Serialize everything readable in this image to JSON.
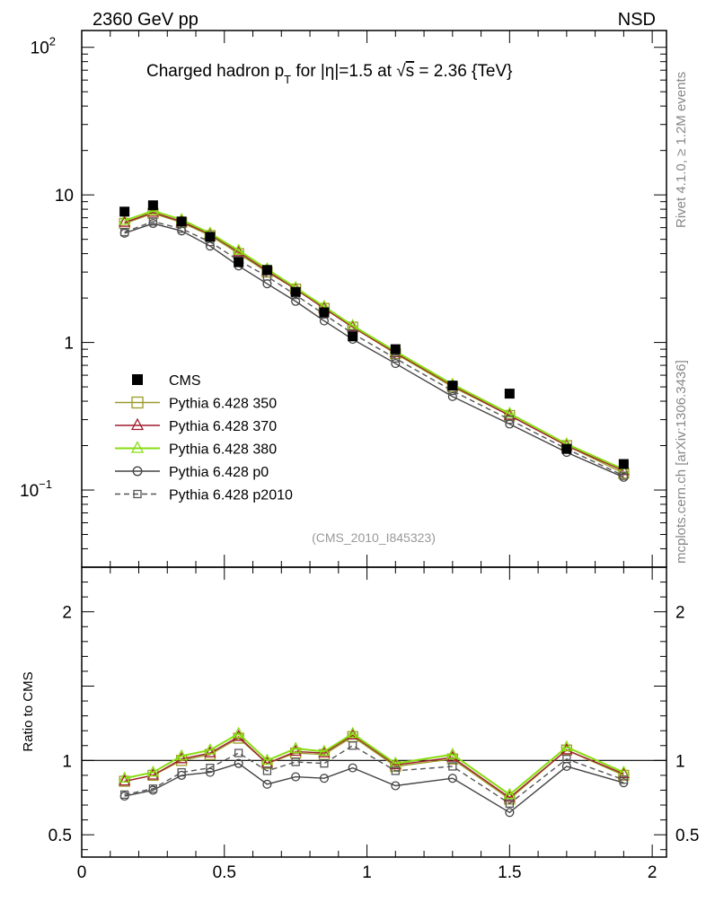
{
  "header": {
    "left_label": "2360 GeV pp",
    "right_label": "NSD"
  },
  "side_text": {
    "rivet": "Rivet 4.1.0, ≥ 1.2M events",
    "source": "mcplots.cern.ch [arXiv:1306.3436]"
  },
  "chart_data": {
    "type": "line",
    "title": {
      "pre": "Charged hadron p",
      "sub": "T",
      "mid": " for |η|=1.5 at √",
      "overline": "s",
      "post": " = 2.36 {TeV}"
    },
    "analysis_label": "(CMS_2010_I845323)",
    "x": [
      0.15,
      0.25,
      0.35,
      0.45,
      0.55,
      0.65,
      0.75,
      0.85,
      0.95,
      1.1,
      1.3,
      1.5,
      1.7,
      1.9
    ],
    "main_panel": {
      "y_scale": "log",
      "ylim": [
        0.03,
        130
      ],
      "ticks": [
        {
          "value": 100,
          "base": "10",
          "exp": "2"
        },
        {
          "value": 10,
          "base": "10",
          "exp": ""
        },
        {
          "value": 1,
          "base": "1",
          "exp": ""
        },
        {
          "value": 0.1,
          "base": "10",
          "exp": "−1"
        }
      ]
    },
    "ratio_panel": {
      "ylabel": "Ratio to CMS",
      "ylim": [
        0.35,
        2.3
      ],
      "ticks": [
        {
          "value": 2,
          "label": "2"
        },
        {
          "value": 1,
          "label": "1"
        },
        {
          "value": 0.5,
          "label": "0.5"
        }
      ]
    },
    "xlim": [
      0,
      2.05
    ],
    "x_ticks": [
      {
        "value": 0,
        "label": "0"
      },
      {
        "value": 0.5,
        "label": "0.5"
      },
      {
        "value": 1,
        "label": "1"
      },
      {
        "value": 1.5,
        "label": "1.5"
      },
      {
        "value": 2,
        "label": "2"
      }
    ],
    "data": {
      "name": "CMS",
      "color": "#000000",
      "values": [
        7.7,
        8.5,
        6.6,
        5.2,
        3.5,
        3.1,
        2.2,
        1.6,
        1.1,
        0.9,
        0.51,
        0.45,
        0.19,
        0.15
      ]
    },
    "series": [
      {
        "name": "Pythia 6.428 350",
        "color": "#9a9a2a",
        "marker": "square",
        "dash": false,
        "values": [
          6.4,
          7.5,
          6.5,
          5.3,
          4.0,
          3.0,
          2.3,
          1.7,
          1.27,
          0.84,
          0.5,
          0.32,
          0.2,
          0.13
        ],
        "ratio": [
          0.86,
          0.9,
          1.0,
          1.04,
          1.15,
          0.98,
          1.05,
          1.04,
          1.16,
          0.96,
          1.01,
          0.74,
          1.07,
          0.9
        ]
      },
      {
        "name": "Pythia 6.428 370",
        "color": "#a01c2c",
        "marker": "triangle",
        "dash": false,
        "values": [
          6.5,
          7.6,
          6.6,
          5.4,
          4.1,
          3.05,
          2.3,
          1.7,
          1.27,
          0.85,
          0.51,
          0.32,
          0.2,
          0.135
        ],
        "ratio": [
          0.86,
          0.9,
          1.01,
          1.05,
          1.16,
          0.98,
          1.06,
          1.05,
          1.17,
          0.97,
          1.02,
          0.75,
          1.07,
          0.91
        ]
      },
      {
        "name": "Pythia 6.428 380",
        "color": "#88dd11",
        "marker": "triangle",
        "dash": false,
        "values": [
          6.7,
          7.8,
          6.8,
          5.5,
          4.2,
          3.15,
          2.35,
          1.75,
          1.3,
          0.87,
          0.52,
          0.33,
          0.205,
          0.138
        ],
        "ratio": [
          0.88,
          0.92,
          1.03,
          1.07,
          1.18,
          1.0,
          1.08,
          1.06,
          1.18,
          0.98,
          1.04,
          0.77,
          1.09,
          0.92
        ]
      },
      {
        "name": "Pythia 6.428 p0",
        "color": "#444444",
        "marker": "circle",
        "dash": false,
        "values": [
          5.5,
          6.4,
          5.7,
          4.5,
          3.3,
          2.5,
          1.9,
          1.4,
          1.05,
          0.72,
          0.43,
          0.28,
          0.18,
          0.122
        ],
        "ratio": [
          0.76,
          0.8,
          0.9,
          0.92,
          0.98,
          0.84,
          0.89,
          0.88,
          0.95,
          0.83,
          0.88,
          0.65,
          0.96,
          0.85
        ]
      },
      {
        "name": "Pythia 6.428 p2010",
        "color": "#555555",
        "marker": "square",
        "dash": true,
        "values": [
          5.6,
          6.6,
          5.9,
          4.8,
          3.6,
          2.8,
          2.1,
          1.55,
          1.15,
          0.78,
          0.47,
          0.3,
          0.19,
          0.125
        ],
        "ratio": [
          0.77,
          0.81,
          0.92,
          0.95,
          1.05,
          0.93,
          0.99,
          0.98,
          1.1,
          0.93,
          0.96,
          0.71,
          1.01,
          0.87
        ]
      }
    ]
  }
}
